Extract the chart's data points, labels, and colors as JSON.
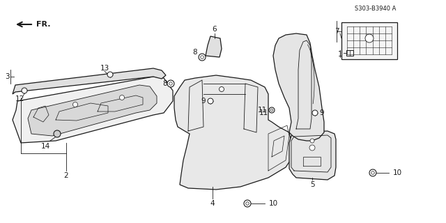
{
  "bg_color": "#ffffff",
  "line_color": "#1a1a1a",
  "part_number_text": "S303-B3940 A",
  "fig_width": 6.4,
  "fig_height": 3.2,
  "dpi": 100
}
